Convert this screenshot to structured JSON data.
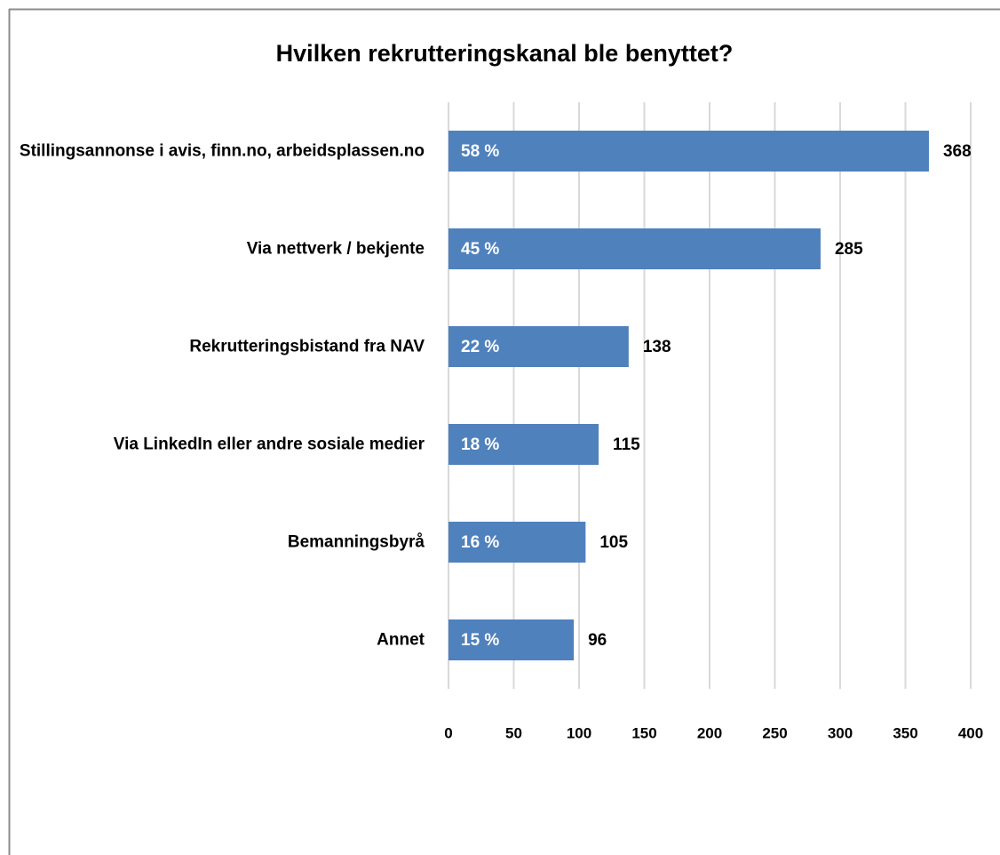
{
  "chart_data": {
    "type": "bar",
    "orientation": "horizontal",
    "title": "Hvilken rekrutteringskanal ble benyttet?",
    "categories": [
      "Stillingsannonse i avis, finn.no, arbeidsplassen.no",
      "Via nettverk / bekjente",
      "Rekrutteringsbistand fra NAV",
      "Via LinkedIn eller andre sosiale medier",
      "Bemanningsbyrå",
      "Annet"
    ],
    "values": [
      368,
      285,
      138,
      115,
      105,
      96
    ],
    "percent_labels": [
      "58 %",
      "45 %",
      "22 %",
      "18 %",
      "16 %",
      "15 %"
    ],
    "color": "#4f81bd",
    "xlim": [
      0,
      400
    ],
    "xticks": [
      0,
      50,
      100,
      150,
      200,
      250,
      300,
      350,
      400
    ],
    "grid": true
  }
}
